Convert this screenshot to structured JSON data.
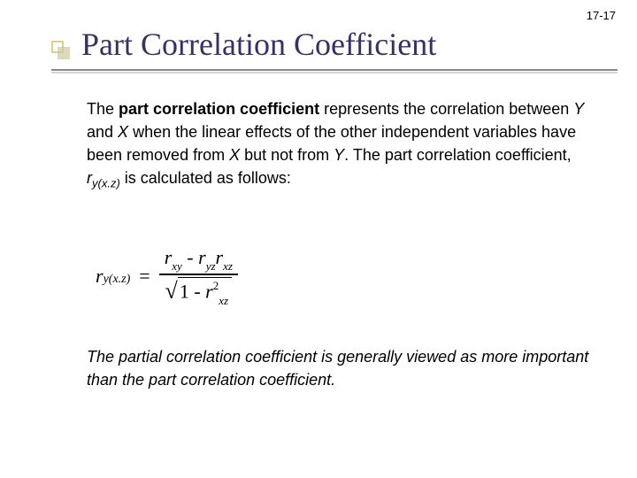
{
  "page_number": "17-17",
  "title": "Part Correlation Coefficient",
  "colors": {
    "title_color": "#333366",
    "bullet_border": "#d9d48a",
    "bullet_shadow": "#ccc7a0",
    "underline_dark": "#8a8a8a",
    "underline_light": "#d4d4d4",
    "text": "#000000",
    "background": "#ffffff"
  },
  "body": {
    "p1_a": "The ",
    "p1_bold": "part correlation coefficient",
    "p1_b": " represents the correlation between ",
    "p1_var1": "Y",
    "p1_c": " and ",
    "p1_var2": "X",
    "p1_d": " when the linear effects of the other independent variables have been removed from ",
    "p1_var3": "X",
    "p1_e": " but not from ",
    "p1_var4": "Y",
    "p1_f": ".  The part correlation coefficient, ",
    "p1_rsym": "r",
    "p1_rsub": "y(x.z)",
    "p1_g": " is calculated as follows:"
  },
  "formula": {
    "lhs_r": "r",
    "lhs_sub": "y(x.z)",
    "eq": "=",
    "num_t1r": "r",
    "num_t1s": "xy",
    "minus": " - ",
    "num_t2r": "r",
    "num_t2s": "yz",
    "num_t3r": "r",
    "num_t3s": "xz",
    "den_one": "1 - ",
    "den_r": "r",
    "den_sup": "2",
    "den_sub": "xz"
  },
  "note": "The partial correlation coefficient is generally viewed as more important than the part correlation coefficient."
}
